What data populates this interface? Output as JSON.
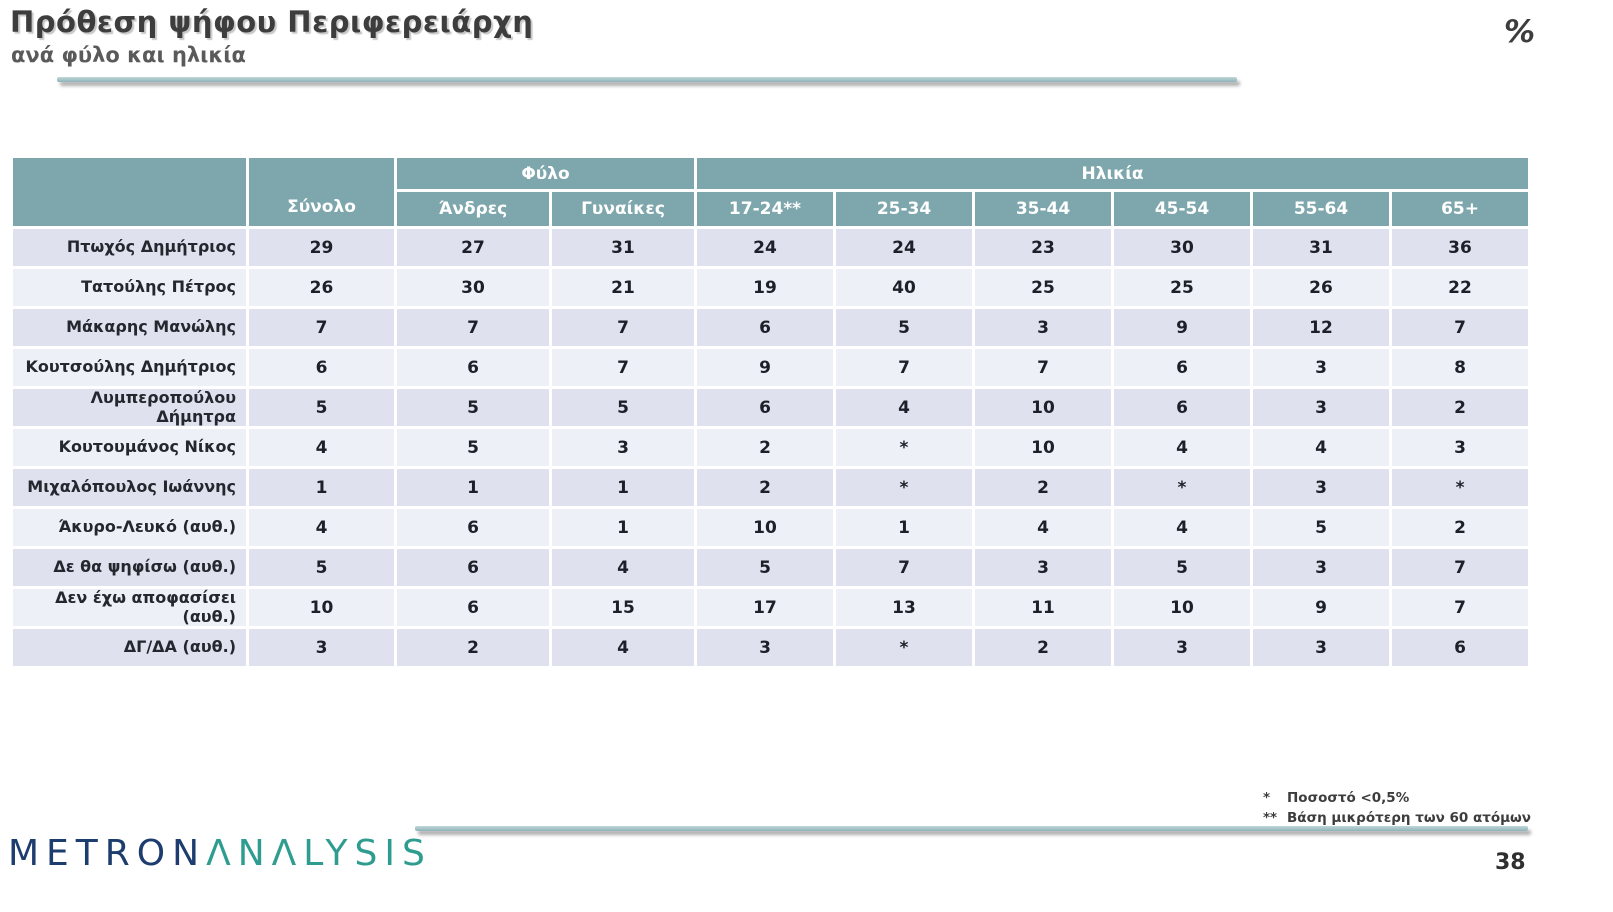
{
  "slide": {
    "title": "Πρόθεση ψήφου Περιφερειάρχη",
    "subtitle": "ανά φύλο και ηλικία",
    "unit_symbol": "%",
    "page_number": "38"
  },
  "logo": {
    "text_primary": "METRON",
    "text_secondary": "ΛNΛLYSIS",
    "color_primary": "#1d3d6e",
    "color_secondary": "#2f9c90"
  },
  "footnotes": [
    {
      "marker": "*",
      "text": "Ποσοστό <0,5%"
    },
    {
      "marker": "**",
      "text": "Βάση μικρότερη των 60 ατόμων"
    }
  ],
  "colors": {
    "header_teal": "#7ea7ad",
    "row_odd": "#dfe2ee",
    "row_even": "#eef0f7"
  },
  "chart_data": {
    "type": "table",
    "title": "Πρόθεση ψήφου Περιφερειάρχη — ανά φύλο και ηλικία",
    "group_headers": [
      {
        "label": "Φύλο",
        "span": 2
      },
      {
        "label": "Ηλικία",
        "span": 6
      }
    ],
    "columns": [
      "Σύνολο",
      "Άνδρες",
      "Γυναίκες",
      "17-24**",
      "25-34",
      "35-44",
      "45-54",
      "55-64",
      "65+"
    ],
    "rows": [
      {
        "label": "Πτωχός Δημήτριος",
        "values": [
          "29",
          "27",
          "31",
          "24",
          "24",
          "23",
          "30",
          "31",
          "36"
        ]
      },
      {
        "label": "Τατούλης Πέτρος",
        "values": [
          "26",
          "30",
          "21",
          "19",
          "40",
          "25",
          "25",
          "26",
          "22"
        ]
      },
      {
        "label": "Μάκαρης Μανώλης",
        "values": [
          "7",
          "7",
          "7",
          "6",
          "5",
          "3",
          "9",
          "12",
          "7"
        ]
      },
      {
        "label": "Κουτσούλης Δημήτριος",
        "values": [
          "6",
          "6",
          "7",
          "9",
          "7",
          "7",
          "6",
          "3",
          "8"
        ]
      },
      {
        "label": "Λυμπεροπούλου Δήμητρα",
        "values": [
          "5",
          "5",
          "5",
          "6",
          "4",
          "10",
          "6",
          "3",
          "2"
        ]
      },
      {
        "label": "Κουτουμάνος Νίκος",
        "values": [
          "4",
          "5",
          "3",
          "2",
          "*",
          "10",
          "4",
          "4",
          "3"
        ]
      },
      {
        "label": "Μιχαλόπουλος Ιωάννης",
        "values": [
          "1",
          "1",
          "1",
          "2",
          "*",
          "2",
          "*",
          "3",
          "*"
        ]
      },
      {
        "label": "Άκυρο-Λευκό (αυθ.)",
        "values": [
          "4",
          "6",
          "1",
          "10",
          "1",
          "4",
          "4",
          "5",
          "2"
        ]
      },
      {
        "label": "Δε θα ψηφίσω (αυθ.)",
        "values": [
          "5",
          "6",
          "4",
          "5",
          "7",
          "3",
          "5",
          "3",
          "7"
        ]
      },
      {
        "label": "Δεν έχω αποφασίσει (αυθ.)",
        "values": [
          "10",
          "6",
          "15",
          "17",
          "13",
          "11",
          "10",
          "9",
          "7"
        ]
      },
      {
        "label": "ΔΓ/ΔΑ (αυθ.)",
        "values": [
          "3",
          "2",
          "4",
          "3",
          "*",
          "2",
          "3",
          "3",
          "6"
        ]
      }
    ]
  }
}
